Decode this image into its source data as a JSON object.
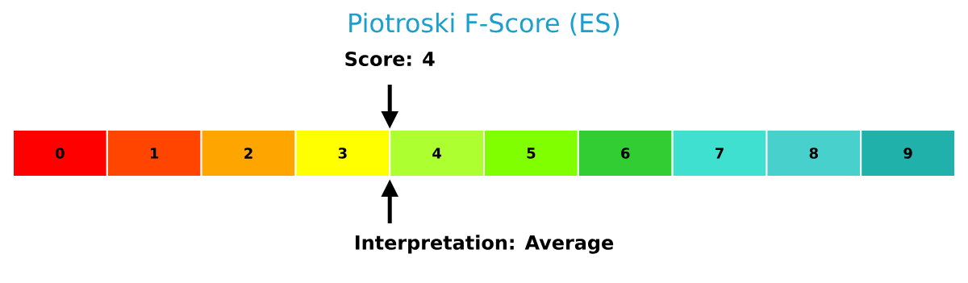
{
  "chart_data": {
    "type": "heatmap",
    "title": "Piotroski F-Score (ES)",
    "categories": [
      null,
      null,
      null,
      null,
      null,
      null,
      null,
      null,
      null,
      null
    ],
    "y_categories": [
      null
    ],
    "cells": [
      [
        0,
        1,
        2,
        3,
        4,
        5,
        6,
        7,
        8,
        9
      ]
    ],
    "data_labels": true,
    "colors": [
      "#ff0000",
      "#ff4500",
      "#ffa500",
      "#ffff00",
      "#adff2f",
      "#7fff00",
      "#32cd32",
      "#40e0d0",
      "#48d1cc",
      "#20b2aa"
    ],
    "annotations": [
      "Score: 4",
      "Interpretation: Average"
    ]
  }
}
